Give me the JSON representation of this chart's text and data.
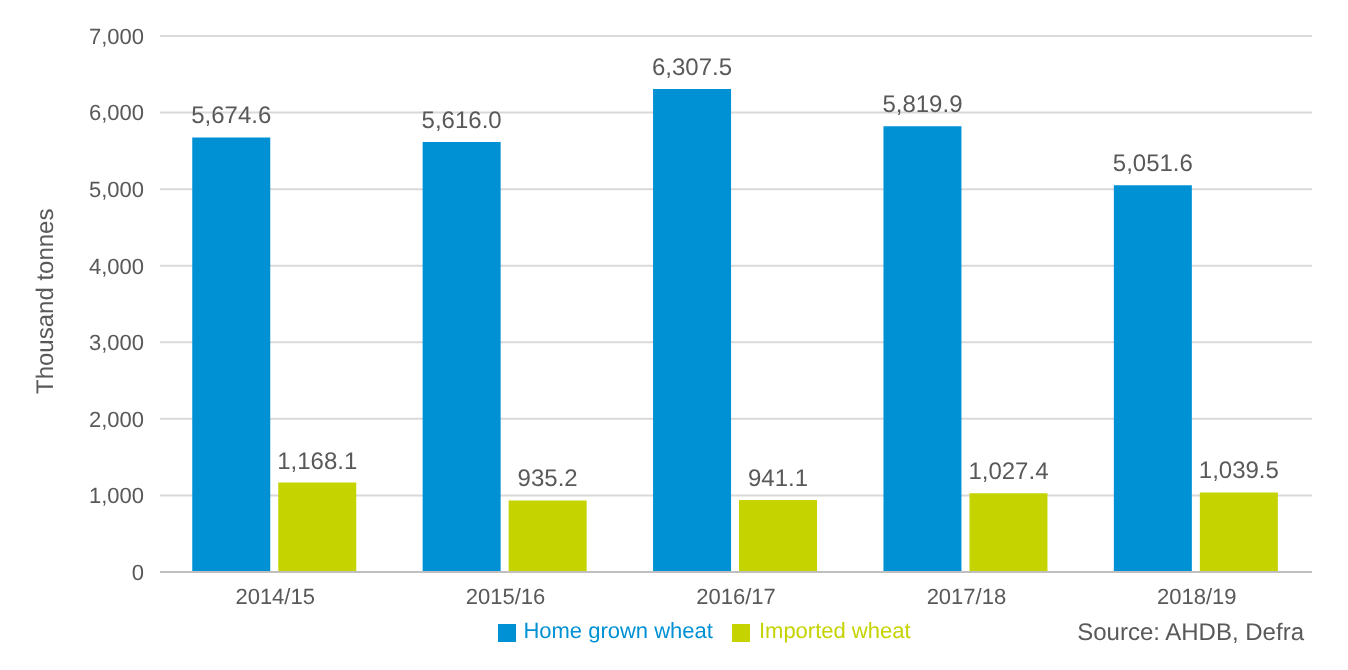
{
  "chart_data": {
    "type": "bar",
    "ylabel": "Thousand tonnes",
    "categories": [
      "2014/15",
      "2015/16",
      "2016/17",
      "2017/18",
      "2018/19"
    ],
    "series": [
      {
        "name": "Home grown wheat",
        "color": "#0091d5",
        "values": [
          5674.6,
          5616.0,
          6307.5,
          5819.9,
          5051.6
        ],
        "value_labels": [
          "5,674.6",
          "5,616.0",
          "6,307.5",
          "5,819.9",
          "5,051.6"
        ]
      },
      {
        "name": "Imported wheat",
        "color": "#c5d300",
        "values": [
          1168.1,
          935.2,
          941.1,
          1027.4,
          1039.5
        ],
        "value_labels": [
          "1,168.1",
          "935.2",
          "941.1",
          "1,027.4",
          "1,039.5"
        ]
      }
    ],
    "ylim": [
      0,
      7000
    ],
    "yticks": [
      {
        "value": 0,
        "label": "0"
      },
      {
        "value": 1000,
        "label": "1,000"
      },
      {
        "value": 2000,
        "label": "2,000"
      },
      {
        "value": 3000,
        "label": "3,000"
      },
      {
        "value": 4000,
        "label": "4,000"
      },
      {
        "value": 5000,
        "label": "5,000"
      },
      {
        "value": 6000,
        "label": "6,000"
      },
      {
        "value": 7000,
        "label": "7,000"
      }
    ],
    "grid": "y",
    "legend": "bottom",
    "annotations": [
      "Source: AHDB, Defra"
    ]
  }
}
